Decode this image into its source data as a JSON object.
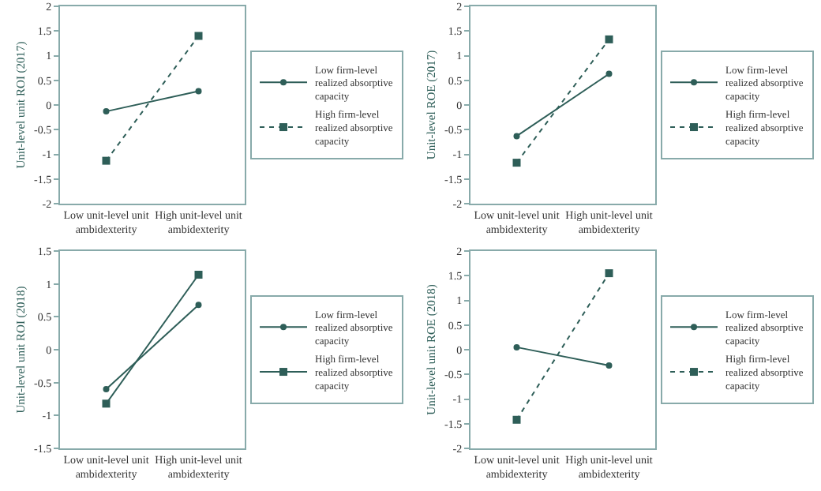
{
  "chart_data": [
    {
      "type": "line",
      "ylabel": "Unit-level unit ROI (2017)",
      "categories": [
        "Low unit-level unit ambidexterity",
        "High unit-level unit ambidexterity"
      ],
      "ylim": [
        -2,
        2
      ],
      "yticks": [
        -2,
        -1.5,
        -1,
        -0.5,
        0,
        0.5,
        1,
        1.5,
        2
      ],
      "grid": false,
      "legend": "right",
      "series": [
        {
          "name": "Low firm-level realized absorptive capacity",
          "color": "#2e5e58",
          "values": [
            -0.13,
            0.28
          ],
          "marker": "circle",
          "line_style": "solid"
        },
        {
          "name": "High firm-level realized absorptive capacity",
          "color": "#2e5e58",
          "values": [
            -1.13,
            1.4
          ],
          "marker": "square",
          "line_style": "dotted"
        }
      ]
    },
    {
      "type": "line",
      "ylabel": "Unit-level ROE (2017)",
      "categories": [
        "Low unit-level unit ambidexterity",
        "High unit-level unit ambidexterity"
      ],
      "ylim": [
        -2,
        2
      ],
      "yticks": [
        -2,
        -1.5,
        -1,
        -0.5,
        0,
        0.5,
        1,
        1.5,
        2
      ],
      "grid": false,
      "legend": "right",
      "series": [
        {
          "name": "Low firm-level realized absorptive capacity",
          "color": "#2e5e58",
          "values": [
            -0.63,
            0.63
          ],
          "marker": "circle",
          "line_style": "solid"
        },
        {
          "name": "High firm-level realized absorptive capacity",
          "color": "#2e5e58",
          "values": [
            -1.17,
            1.33
          ],
          "marker": "square",
          "line_style": "dotted"
        }
      ]
    },
    {
      "type": "line",
      "ylabel": "Unit-level unit ROI (2018)",
      "categories": [
        "Low unit-level unit ambidexterity",
        "High unit-level unit ambidexterity"
      ],
      "ylim": [
        -1.5,
        1.5
      ],
      "yticks": [
        -1.5,
        -1,
        -0.5,
        0,
        0.5,
        1,
        1.5
      ],
      "grid": false,
      "legend": "right",
      "series": [
        {
          "name": "Low firm-level realized absorptive capacity",
          "color": "#2e5e58",
          "values": [
            -0.6,
            0.68
          ],
          "marker": "circle",
          "line_style": "solid"
        },
        {
          "name": "High firm-level realized absorptive capacity",
          "color": "#2e5e58",
          "values": [
            -0.82,
            1.14
          ],
          "marker": "square",
          "line_style": "solid"
        }
      ]
    },
    {
      "type": "line",
      "ylabel": "Unit-level unit ROE (2018)",
      "categories": [
        "Low unit-level unit ambidexterity",
        "High unit-level unit ambidexterity"
      ],
      "ylim": [
        -2,
        2
      ],
      "yticks": [
        -2,
        -1.5,
        -1,
        -0.5,
        0,
        0.5,
        1,
        1.5,
        2
      ],
      "grid": false,
      "legend": "right",
      "series": [
        {
          "name": "Low firm-level realized absorptive capacity",
          "color": "#2e5e58",
          "values": [
            0.05,
            -0.32
          ],
          "marker": "circle",
          "line_style": "solid"
        },
        {
          "name": "High firm-level realized absorptive capacity",
          "color": "#2e5e58",
          "values": [
            -1.42,
            1.55
          ],
          "marker": "square",
          "line_style": "dotted"
        }
      ]
    }
  ]
}
